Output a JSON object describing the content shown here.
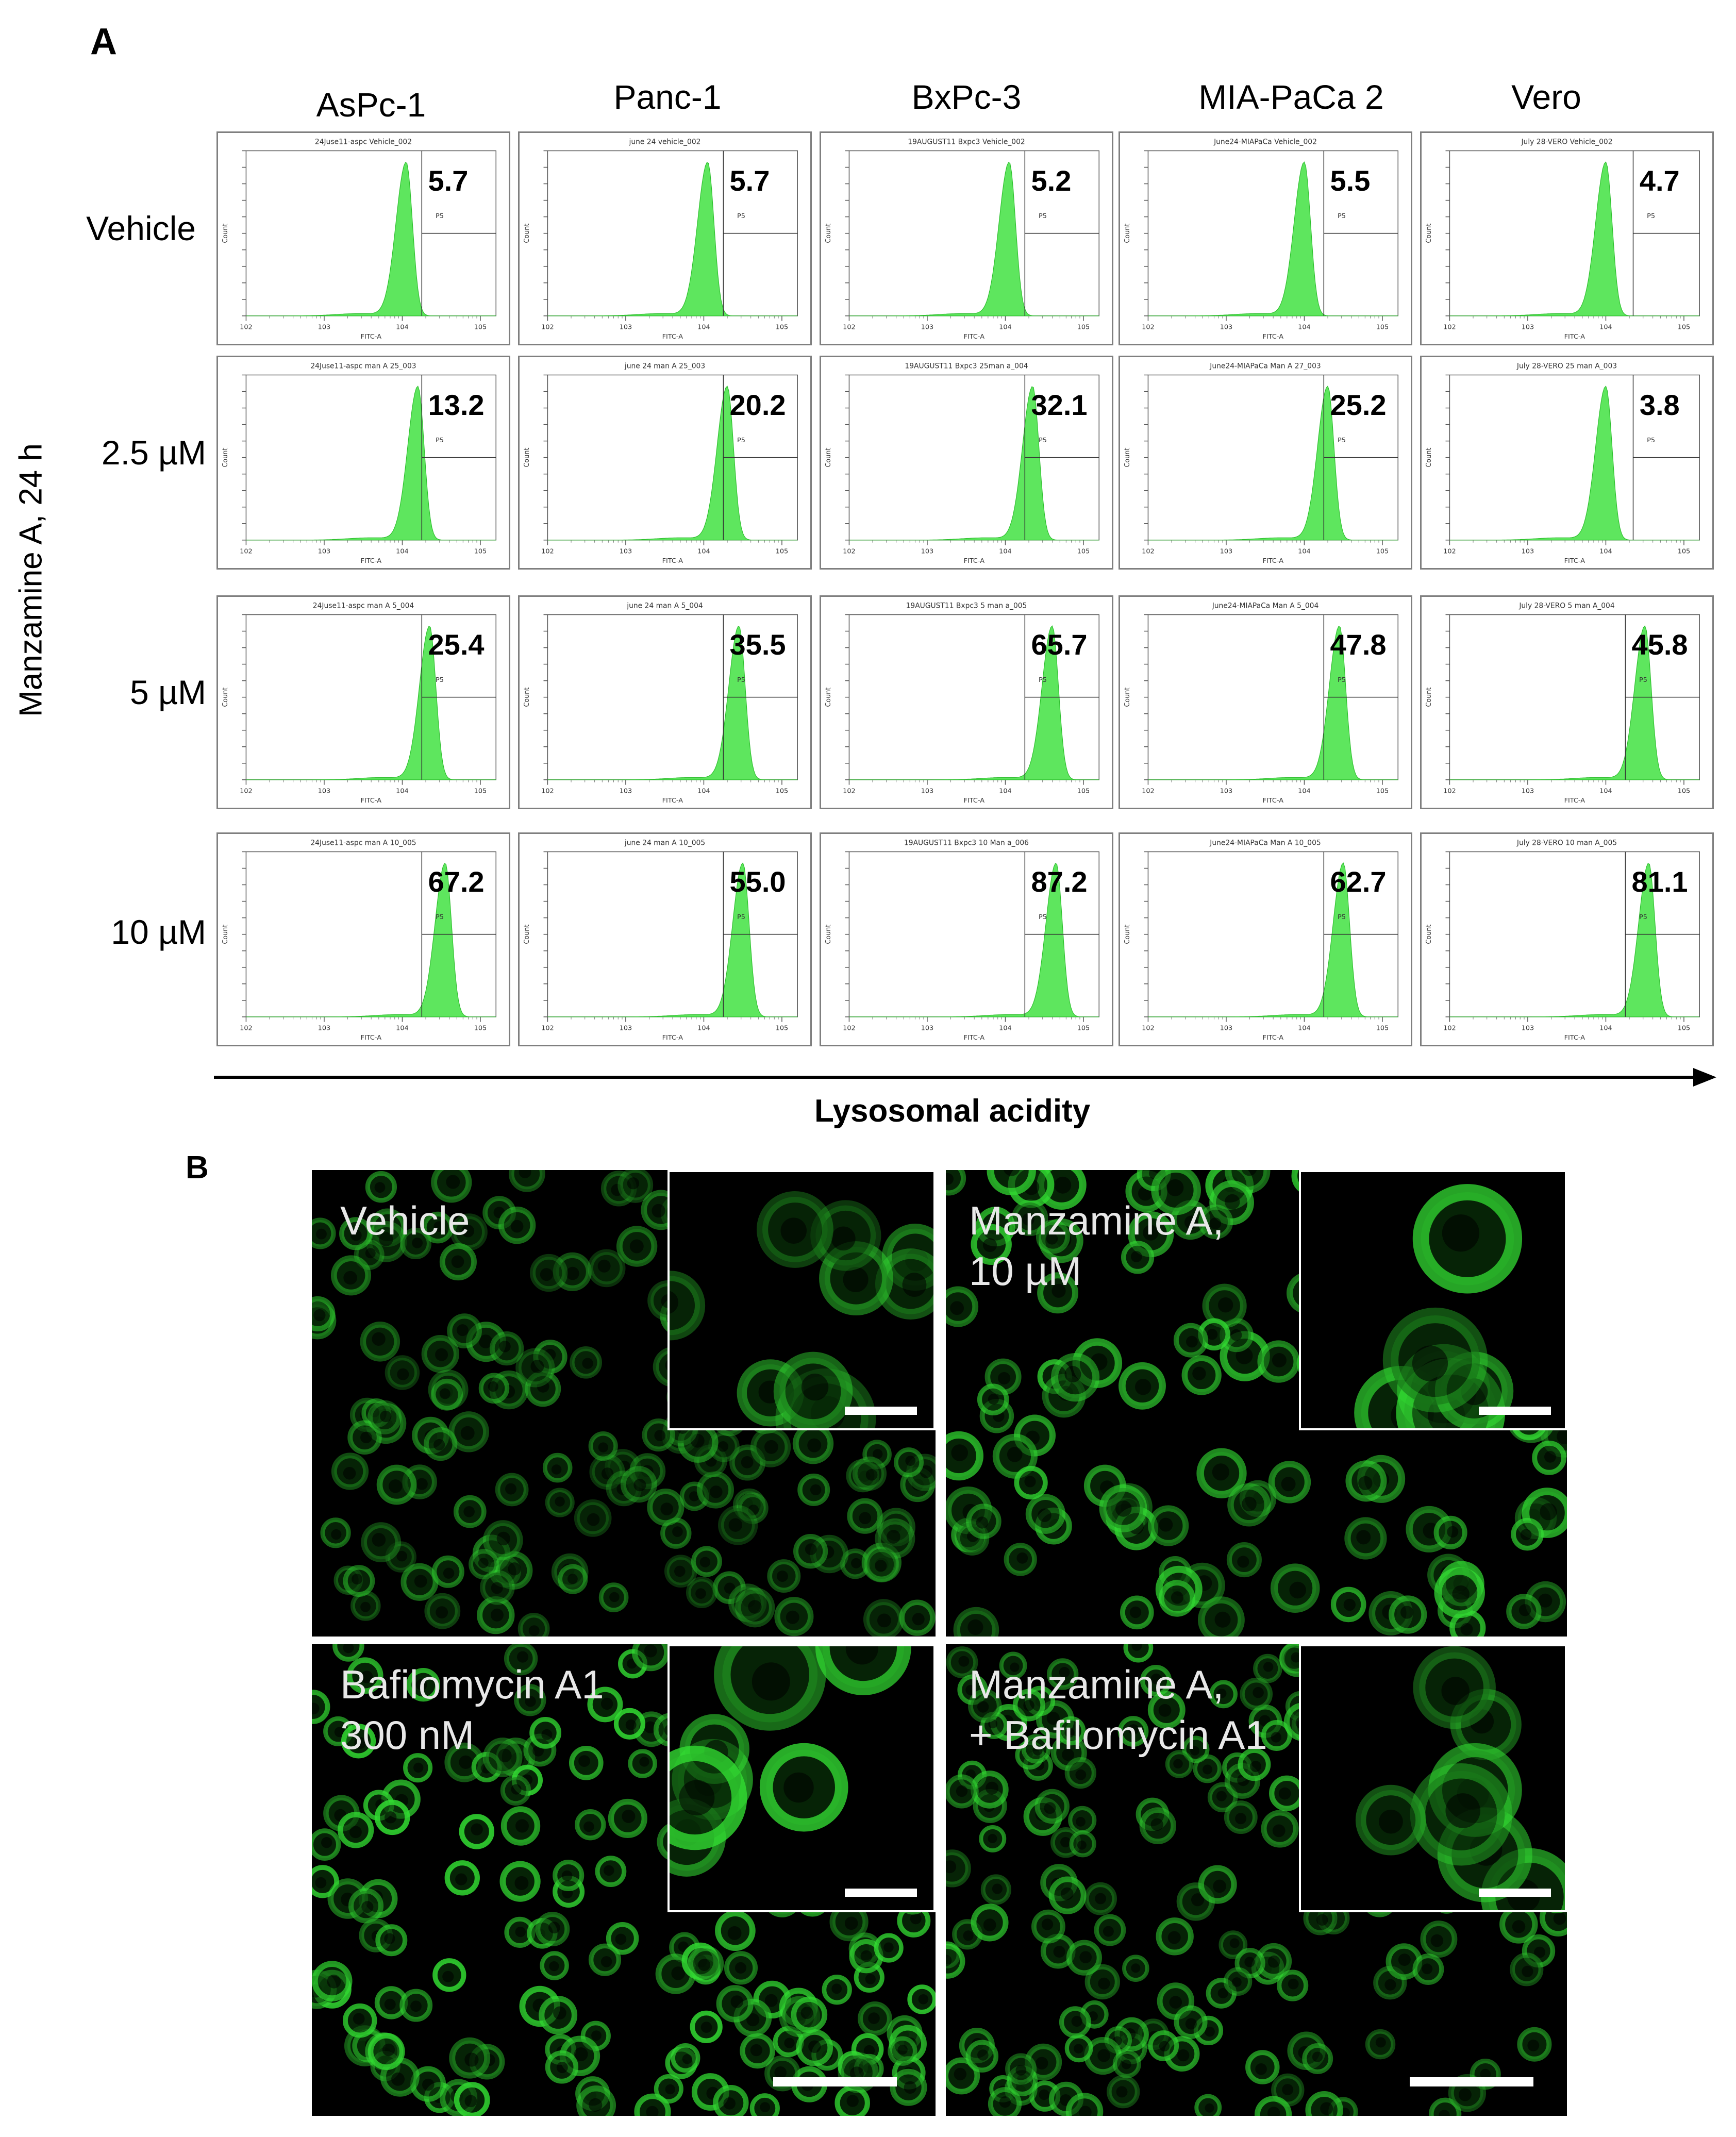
{
  "panel_a": {
    "letter": "A",
    "y_title": "Manzamine A, 24 h",
    "arrow_title": "Lysosomal acidity",
    "gate_label": "P5",
    "x_axis_label": "FITC-A",
    "y_axis_label": "Count",
    "colors": {
      "histogram": "#5ee65e",
      "histogram_edge": "#2fbf2f"
    },
    "chart_data": {
      "type": "histogram-grid",
      "columns": [
        "AsPc-1",
        "Panc-1",
        "BxPc-3",
        "MIA-PaCa 2",
        "Vero"
      ],
      "rows": [
        "Vehicle",
        "2.5 µM",
        "5 µM",
        "10 µM"
      ],
      "values": [
        [
          "5.7",
          "5.7",
          "5.2",
          "5.5",
          "4.7"
        ],
        [
          "13.2",
          "20.2",
          "32.1",
          "25.2",
          "3.8"
        ],
        [
          "25.4",
          "35.5",
          "65.7",
          "47.8",
          "45.8"
        ],
        [
          "67.2",
          "55.0",
          "87.2",
          "62.7",
          "81.1"
        ]
      ],
      "headers": [
        [
          "24Juse11-aspc Vehicle_002",
          "june 24 vehicle_002",
          "19AUGUST11 Bxpc3 Vehicle_002",
          "June24-MIAPaCa Vehicle_002",
          "July 28-VERO Vehicle_002"
        ],
        [
          "24Juse11-aspc man A 25_003",
          "june 24 man A 25_003",
          "19AUGUST11 Bxpc3 25man a_004",
          "June24-MIAPaCa Man A 27_003",
          "July 28-VERO 25 man A_003"
        ],
        [
          "24Juse11-aspc man A 5_004",
          "june 24 man A 5_004",
          "19AUGUST11 Bxpc3 5 man a_005",
          "June24-MIAPaCa Man A 5_004",
          "July 28-VERO 5 man A_004"
        ],
        [
          "24Juse11-aspc man A 10_005",
          "june 24 man A 10_005",
          "19AUGUST11 Bxpc3 10 Man a_006",
          "June24-MIAPaCa Man A 10_005",
          "July 28-VERO 10 man A_005"
        ]
      ],
      "x_scale": "log",
      "peak_log": [
        [
          4.05,
          4.05,
          4.05,
          4.0,
          4.0
        ],
        [
          4.2,
          4.3,
          4.35,
          4.3,
          4.0
        ],
        [
          4.35,
          4.45,
          4.6,
          4.45,
          4.5
        ],
        [
          4.55,
          4.5,
          4.65,
          4.5,
          4.55
        ]
      ],
      "gate_log": 4.25
    }
  },
  "panel_b": {
    "letter": "B",
    "colors": {
      "background": "#000000",
      "stain": "#33dd33"
    },
    "images": [
      {
        "label": "Vehicle"
      },
      {
        "label": "Manzamine A,\n10 µM"
      },
      {
        "label": "Bafilomycin A1\n300 nM"
      },
      {
        "label": "Manzamine A,\n+ Bafilomycin A1"
      }
    ]
  }
}
